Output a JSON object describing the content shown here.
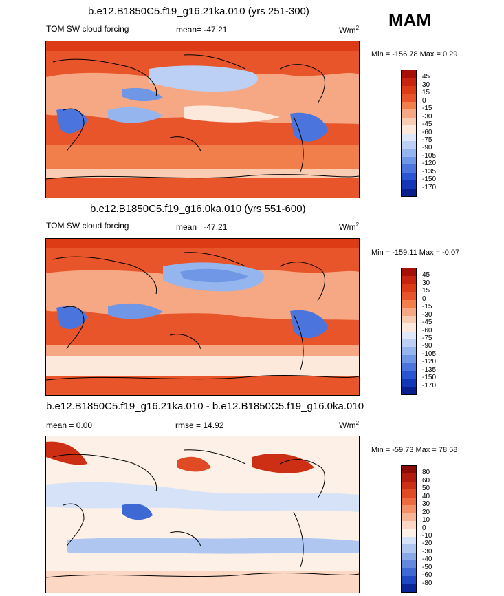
{
  "season": "MAM",
  "panels": [
    {
      "title": "b.e12.B1850C5.f19_g16.21ka.010 (yrs 251-300)",
      "left_label": "TOM SW cloud forcing",
      "center_label": "mean= -47.21",
      "units": "W/m",
      "units_sup": "2",
      "minmax": "Min = -156.78 Max =   0.29",
      "colorbar": {
        "labels": [
          "45",
          "30",
          "15",
          "0",
          "-15",
          "-30",
          "-45",
          "-60",
          "-75",
          "-90",
          "-105",
          "-120",
          "-135",
          "-150",
          "-170"
        ],
        "colors": [
          "#a50f06",
          "#c8230e",
          "#dc3b16",
          "#e8552a",
          "#f07f4c",
          "#f5a883",
          "#f9ccb4",
          "#fde8dc",
          "#dfe8fa",
          "#bcd0f5",
          "#95b5ee",
          "#6f97e5",
          "#4b75dc",
          "#2a55d0",
          "#1337b5",
          "#0a1f8e"
        ]
      }
    },
    {
      "title": "b.e12.B1850C5.f19_g16.0ka.010 (yrs 551-600)",
      "left_label": "TOM SW cloud forcing",
      "center_label": "mean= -47.21",
      "units": "W/m",
      "units_sup": "2",
      "minmax": "Min = -159.11 Max =  -0.07",
      "colorbar": {
        "labels": [
          "45",
          "30",
          "15",
          "0",
          "-15",
          "-30",
          "-45",
          "-60",
          "-75",
          "-90",
          "-105",
          "-120",
          "-135",
          "-150",
          "-170"
        ],
        "colors": [
          "#a50f06",
          "#c8230e",
          "#dc3b16",
          "#e8552a",
          "#f07f4c",
          "#f5a883",
          "#f9ccb4",
          "#fde8dc",
          "#dfe8fa",
          "#bcd0f5",
          "#95b5ee",
          "#6f97e5",
          "#4b75dc",
          "#2a55d0",
          "#1337b5",
          "#0a1f8e"
        ]
      }
    },
    {
      "title": "b.e12.B1850C5.f19_g16.21ka.010 - b.e12.B1850C5.f19_g16.0ka.010",
      "left_label": "mean =   0.00",
      "center_label": "rmse =  14.92",
      "units": "W/m",
      "units_sup": "2",
      "minmax": "Min = -59.73 Max =  78.58",
      "colorbar": {
        "labels": [
          "80",
          "60",
          "50",
          "40",
          "30",
          "20",
          "10",
          "0",
          "-10",
          "-20",
          "-30",
          "-40",
          "-50",
          "-60",
          "-80"
        ],
        "colors": [
          "#8a0a04",
          "#b11a0c",
          "#cc2f14",
          "#e04a24",
          "#ec6b41",
          "#f39068",
          "#f7b596",
          "#fbd7c4",
          "#fdf0e6",
          "#d6e2f7",
          "#afc6f0",
          "#88a8e8",
          "#6389df",
          "#3e68d4",
          "#1f47c2",
          "#0b2496"
        ]
      }
    }
  ],
  "chart_data": [
    {
      "type": "heatmap",
      "title": "b.e12.B1850C5.f19_g16.21ka.010 (yrs 251-300)",
      "variable": "TOM SW cloud forcing",
      "units": "W/m2",
      "mean": -47.21,
      "min": -156.78,
      "max": 0.29,
      "levels": [
        45,
        30,
        15,
        0,
        -15,
        -30,
        -45,
        -60,
        -75,
        -90,
        -105,
        -120,
        -135,
        -150,
        -170
      ]
    },
    {
      "type": "heatmap",
      "title": "b.e12.B1850C5.f19_g16.0ka.010 (yrs 551-600)",
      "variable": "TOM SW cloud forcing",
      "units": "W/m2",
      "mean": -47.21,
      "min": -159.11,
      "max": -0.07,
      "levels": [
        45,
        30,
        15,
        0,
        -15,
        -30,
        -45,
        -60,
        -75,
        -90,
        -105,
        -120,
        -135,
        -150,
        -170
      ]
    },
    {
      "type": "heatmap",
      "title": "b.e12.B1850C5.f19_g16.21ka.010 - b.e12.B1850C5.f19_g16.0ka.010",
      "units": "W/m2",
      "mean": 0.0,
      "rmse": 14.92,
      "min": -59.73,
      "max": 78.58,
      "levels": [
        80,
        60,
        50,
        40,
        30,
        20,
        10,
        0,
        -10,
        -20,
        -30,
        -40,
        -50,
        -60,
        -80
      ]
    }
  ]
}
